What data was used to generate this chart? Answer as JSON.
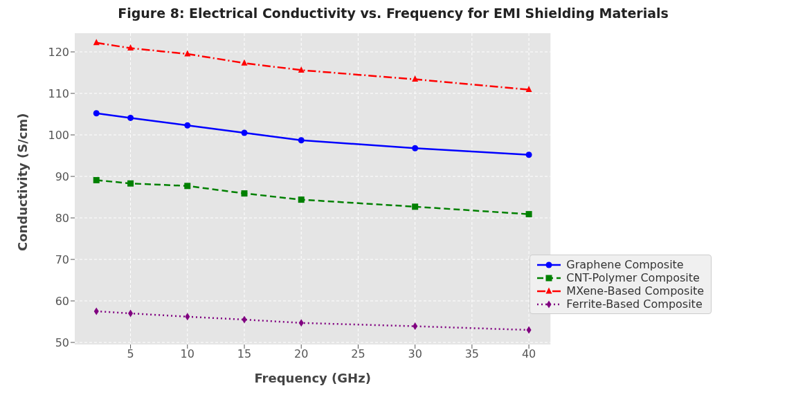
{
  "chart_data": {
    "type": "line",
    "title": "Figure 8: Electrical Conductivity vs. Frequency for EMI Shielding Materials",
    "xlabel": "Frequency (GHz)",
    "ylabel": "Conductivity (S/cm)",
    "x": [
      2,
      5,
      10,
      15,
      20,
      30,
      40
    ],
    "series": [
      {
        "name": "Graphene Composite",
        "color": "#0000ff",
        "marker": "circle",
        "line_style": "solid",
        "values": [
          105.2,
          104.1,
          102.3,
          100.5,
          98.7,
          96.8,
          95.2
        ]
      },
      {
        "name": "CNT-Polymer Composite",
        "color": "#008000",
        "marker": "square",
        "line_style": "dashed",
        "values": [
          89.1,
          88.3,
          87.7,
          85.9,
          84.4,
          82.7,
          80.9
        ]
      },
      {
        "name": "MXene-Based Composite",
        "color": "#ff0000",
        "marker": "triangle",
        "line_style": "dashdot",
        "values": [
          122.2,
          120.9,
          119.5,
          117.3,
          115.6,
          113.4,
          110.9
        ]
      },
      {
        "name": "Ferrite-Based Composite",
        "color": "#800080",
        "marker": "diamond",
        "line_style": "dotted",
        "values": [
          57.5,
          57.0,
          56.2,
          55.5,
          54.7,
          53.9,
          53.0
        ]
      }
    ],
    "xlim": [
      0.1,
      41.9
    ],
    "xticks": [
      5,
      10,
      15,
      20,
      25,
      30,
      35,
      40
    ],
    "ylim": [
      49.5,
      124.5
    ],
    "yticks": [
      50,
      60,
      70,
      80,
      90,
      100,
      110,
      120
    ],
    "grid": true,
    "legend": "right"
  }
}
